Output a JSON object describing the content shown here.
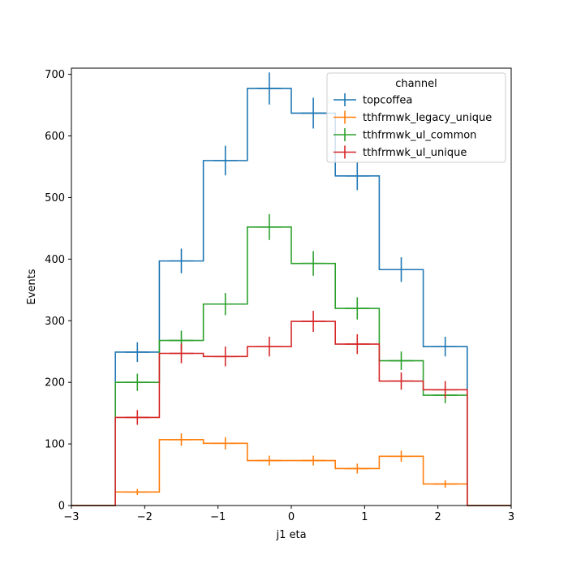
{
  "chart_data": {
    "type": "line",
    "style": "step-histogram-with-errorbars",
    "xlabel": "j1 eta",
    "ylabel": "Events",
    "xlim": [
      -3,
      3
    ],
    "ylim": [
      0,
      710
    ],
    "x_ticks": [
      -3,
      -2,
      -1,
      0,
      1,
      2,
      3
    ],
    "y_ticks": [
      0,
      100,
      200,
      300,
      400,
      500,
      600,
      700
    ],
    "bin_edges": [
      -3.0,
      -2.4,
      -1.8,
      -1.2,
      -0.6,
      0.0,
      0.6,
      1.2,
      1.8,
      2.4,
      3.0
    ],
    "legend": {
      "title": "channel",
      "placement": "top-right"
    },
    "series": [
      {
        "name": "topcoffea",
        "color": "#1f77b4",
        "values": [
          0,
          249,
          397,
          560,
          677,
          637,
          535,
          383,
          258,
          0
        ],
        "errors": [
          0,
          16,
          20,
          24,
          26,
          25,
          23,
          20,
          16,
          0
        ]
      },
      {
        "name": "tthfrmwk_legacy_unique",
        "color": "#ff7f0e",
        "values": [
          0,
          22,
          107,
          101,
          73,
          73,
          60,
          80,
          35,
          0
        ],
        "errors": [
          0,
          5,
          10,
          10,
          8,
          8,
          8,
          9,
          6,
          0
        ]
      },
      {
        "name": "tthfrmwk_ul_common",
        "color": "#2ca02c",
        "values": [
          0,
          200,
          268,
          327,
          452,
          393,
          320,
          235,
          179,
          0
        ],
        "errors": [
          0,
          14,
          16,
          18,
          21,
          20,
          18,
          15,
          13,
          0
        ]
      },
      {
        "name": "tthfrmwk_ul_unique",
        "color": "#d62728",
        "values": [
          0,
          143,
          247,
          242,
          258,
          299,
          262,
          202,
          188,
          0
        ],
        "errors": [
          0,
          12,
          16,
          16,
          16,
          17,
          16,
          14,
          14,
          0
        ]
      }
    ]
  }
}
